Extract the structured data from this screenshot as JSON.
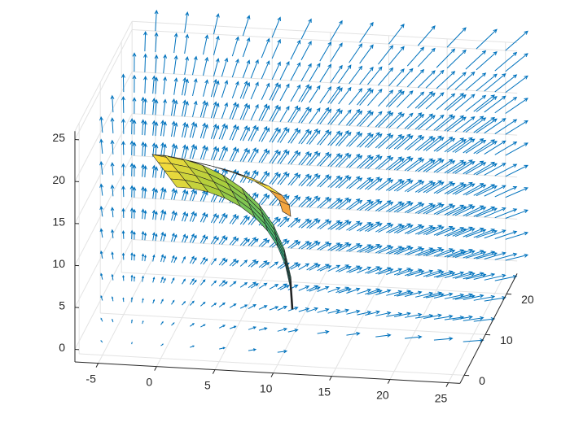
{
  "chart_data": {
    "type": "quiver3",
    "xlim": [
      -7,
      26
    ],
    "ylim": [
      -2,
      25
    ],
    "zlim": [
      -1.5,
      26
    ],
    "xticks": [
      -5,
      0,
      5,
      10,
      15,
      20,
      25
    ],
    "yticks": [
      0,
      10,
      20
    ],
    "zticks": [
      0,
      5,
      10,
      15,
      20,
      25
    ],
    "grid": true,
    "color": "#0072bd"
  }
}
